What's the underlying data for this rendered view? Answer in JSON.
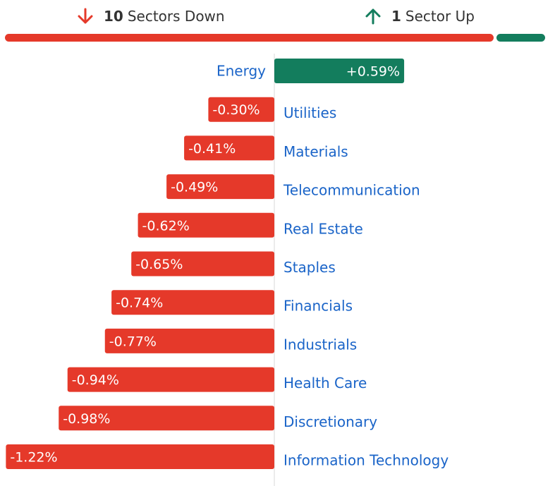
{
  "summary": {
    "down_count": "10",
    "down_label": "Sectors Down",
    "up_count": "1",
    "up_label": "Sector Up",
    "down_icon": "arrow-down-icon",
    "up_icon": "arrow-up-icon"
  },
  "colors": {
    "negative": "#e5392a",
    "positive": "#137d5d",
    "label": "#1a64c8",
    "text_dark": "#333333",
    "axis": "#d9d9d9"
  },
  "chart_data": {
    "type": "bar",
    "orientation": "horizontal",
    "categories": [
      "Energy",
      "Utilities",
      "Materials",
      "Telecommunication",
      "Real Estate",
      "Staples",
      "Financials",
      "Industrials",
      "Health Care",
      "Discretionary",
      "Information Technology"
    ],
    "values": [
      0.59,
      -0.3,
      -0.41,
      -0.49,
      -0.62,
      -0.65,
      -0.74,
      -0.77,
      -0.94,
      -0.98,
      -1.22
    ],
    "value_labels": [
      "+0.59%",
      "-0.30%",
      "-0.41%",
      "-0.49%",
      "-0.62%",
      "-0.65%",
      "-0.74%",
      "-0.77%",
      "-0.94%",
      "-0.98%",
      "-1.22%"
    ],
    "unit": "%",
    "title": "",
    "xlabel": "",
    "ylabel": "",
    "grid": false
  }
}
